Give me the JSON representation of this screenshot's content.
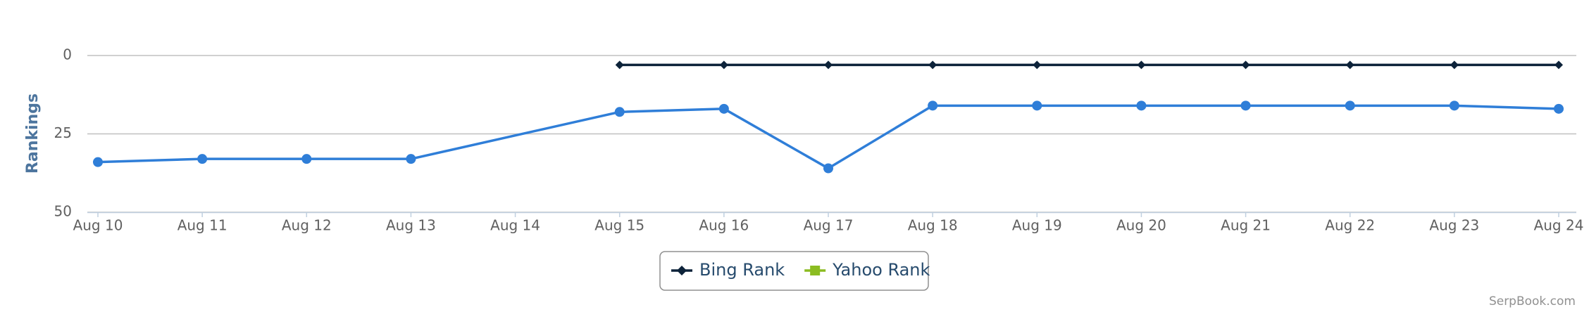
{
  "chart_data": {
    "type": "line",
    "y_label": "Rankings",
    "categories": [
      "Aug 10",
      "Aug 11",
      "Aug 12",
      "Aug 13",
      "Aug 14",
      "Aug 15",
      "Aug 16",
      "Aug 17",
      "Aug 18",
      "Aug 19",
      "Aug 20",
      "Aug 21",
      "Aug 22",
      "Aug 23",
      "Aug 24"
    ],
    "series": [
      {
        "color": "#2f7ed8",
        "marker": "circle",
        "show_in_legend": false,
        "values": [
          34,
          33,
          33,
          33,
          null,
          18,
          17,
          36,
          16,
          16,
          16,
          16,
          16,
          16,
          17
        ]
      },
      {
        "name": "Bing Rank",
        "color": "#0d233a",
        "marker": "diamond",
        "values": [
          null,
          null,
          null,
          null,
          null,
          3,
          3,
          3,
          3,
          3,
          3,
          3,
          3,
          3,
          3
        ]
      },
      {
        "name": "Yahoo Rank",
        "color": "#8bbc21",
        "marker": "square",
        "values": [
          null,
          null,
          null,
          null,
          null,
          null,
          null,
          null,
          null,
          null,
          null,
          null,
          null,
          null,
          null
        ]
      }
    ],
    "ylim": [
      0,
      50
    ],
    "yticks": [
      0,
      25,
      50
    ],
    "reversed": true,
    "grid": true,
    "connect_nulls": true,
    "legend": "bottom",
    "credit": "SerpBook.com"
  }
}
